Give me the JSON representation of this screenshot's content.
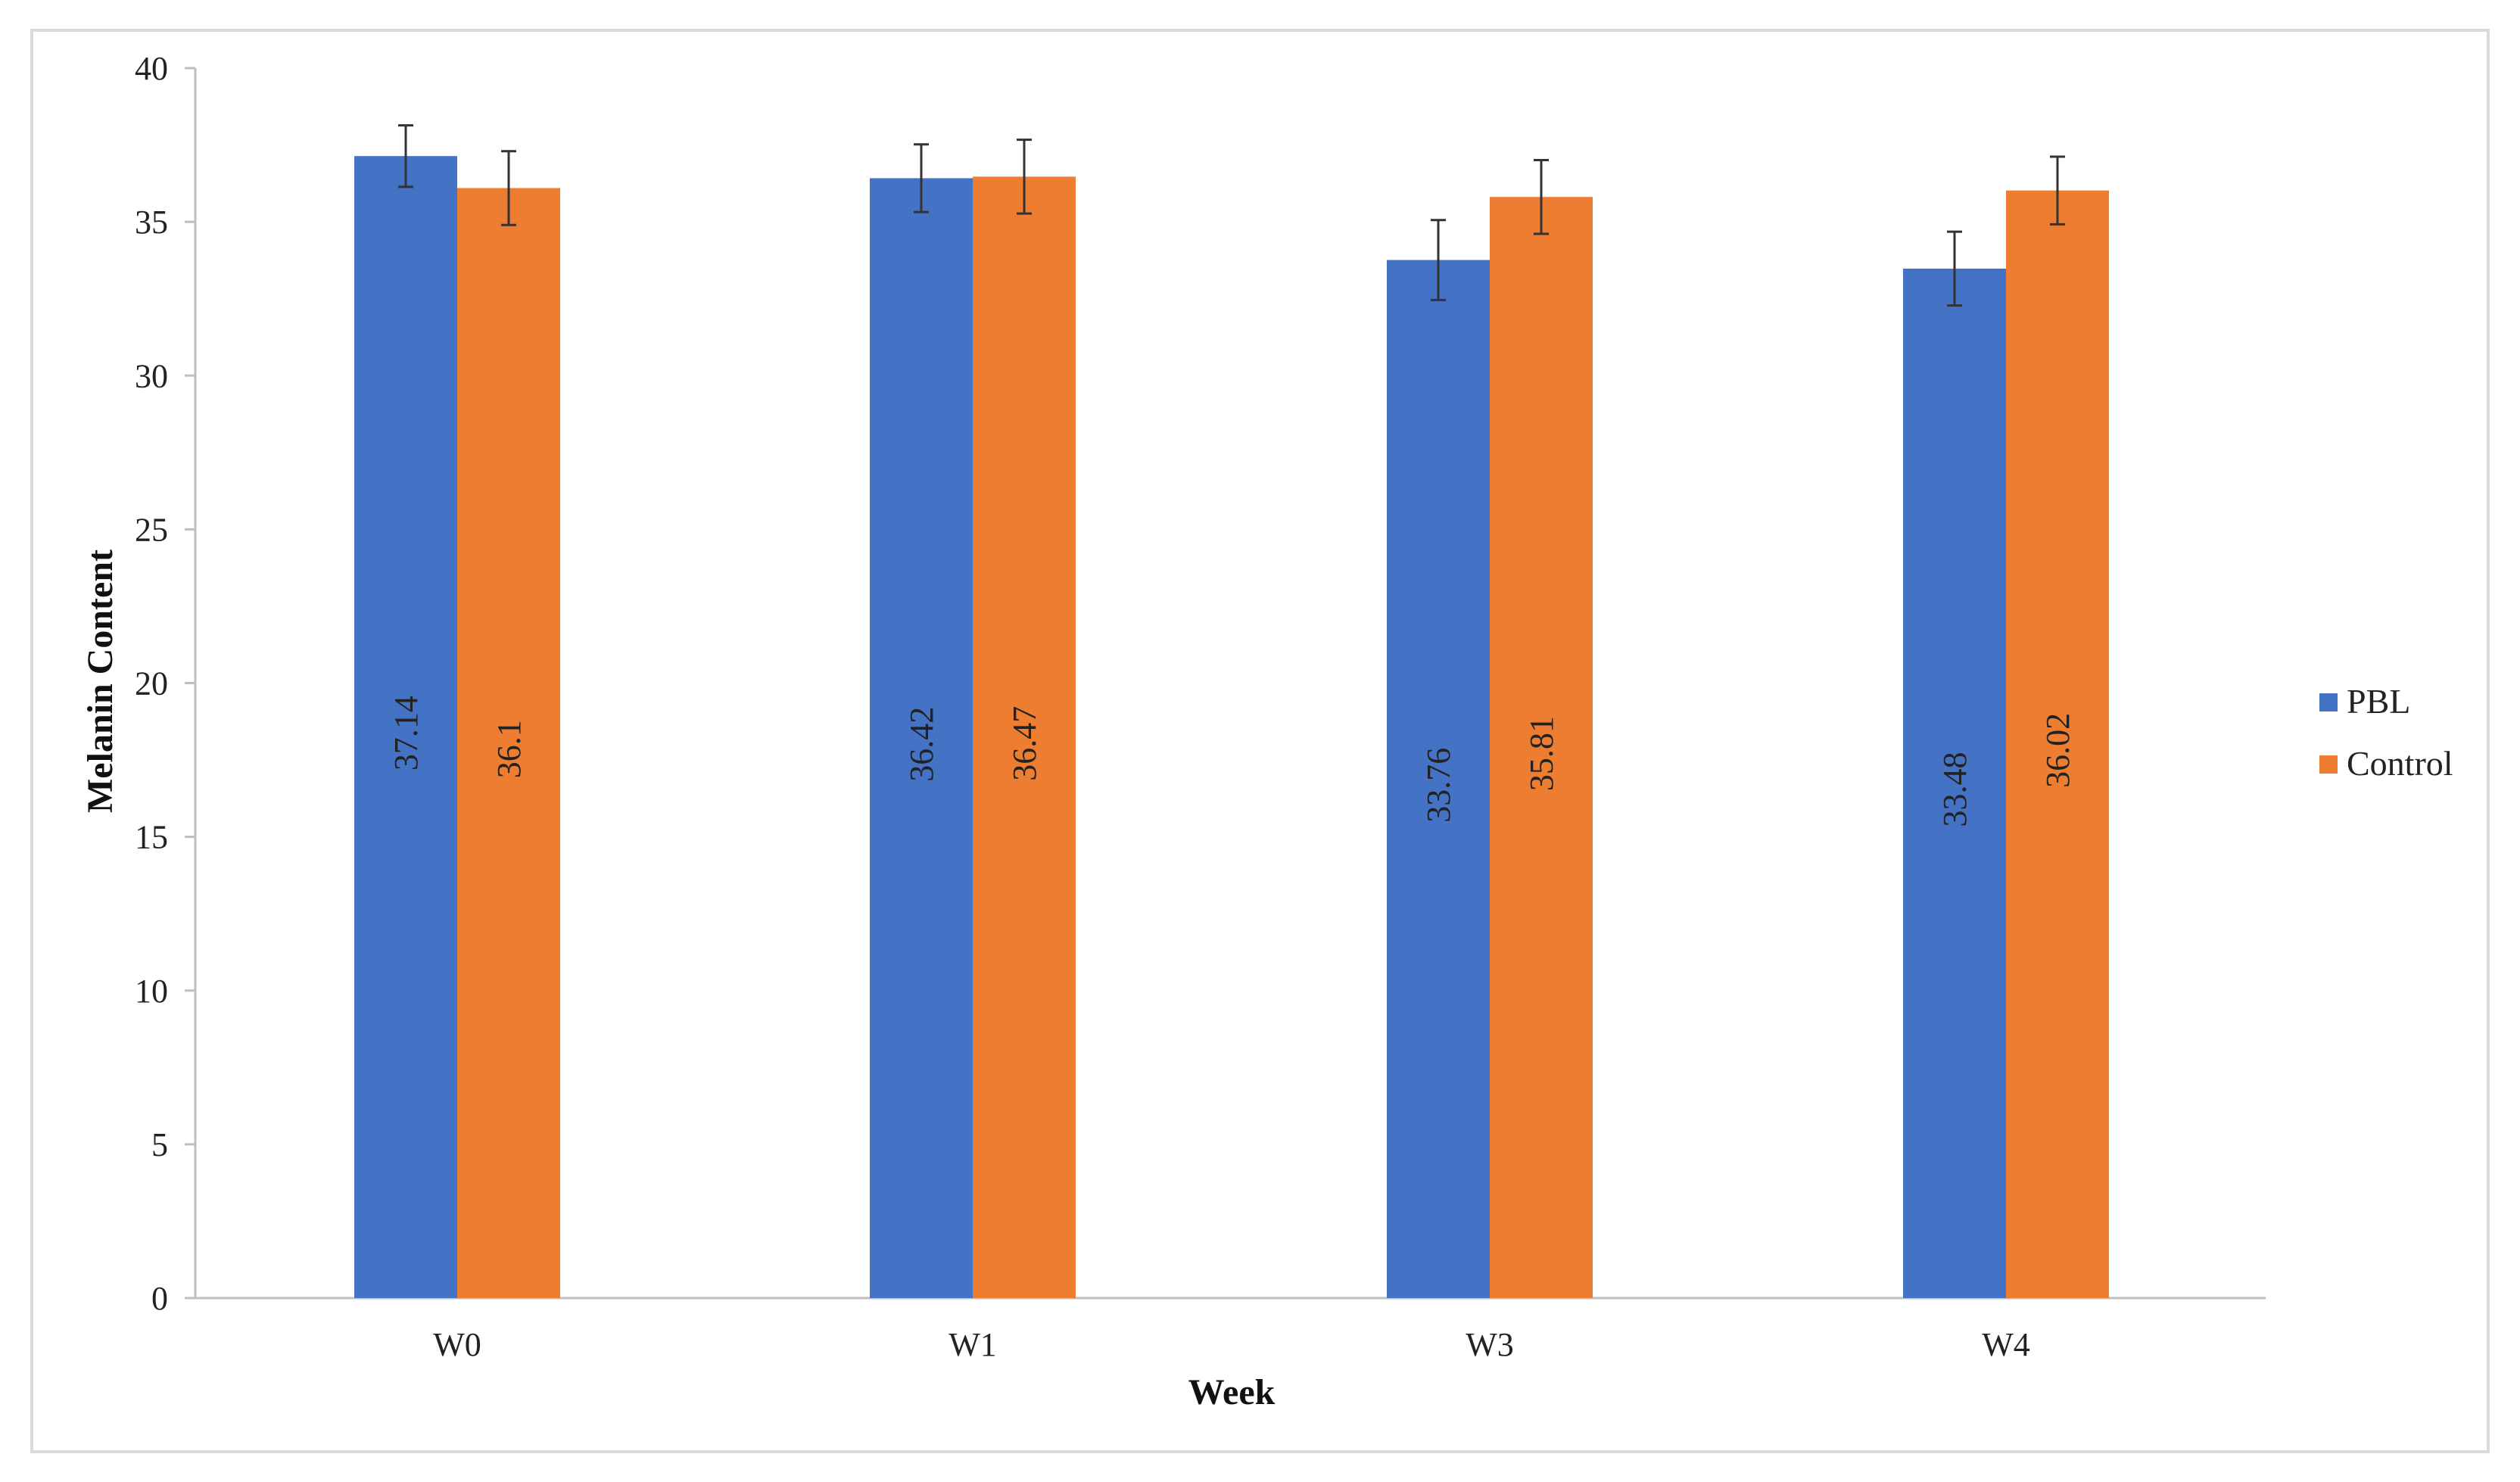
{
  "chart_data": {
    "type": "bar",
    "title": "",
    "xlabel": "Week",
    "ylabel": "Melanin Content",
    "categories": [
      "W0",
      "W1",
      "W3",
      "W4"
    ],
    "ylim": [
      0,
      40
    ],
    "yticks": [
      0,
      5,
      10,
      15,
      20,
      25,
      30,
      35,
      40
    ],
    "grid": false,
    "legend_position": "right",
    "series": [
      {
        "name": "PBL",
        "color": "#4472c4",
        "values": [
          37.14,
          36.42,
          33.76,
          33.48
        ],
        "labels": [
          "37.14",
          "36.42",
          "33.76",
          "33.48"
        ],
        "error": [
          1.0,
          1.1,
          1.3,
          1.2
        ]
      },
      {
        "name": "Control",
        "color": "#ed7d31",
        "values": [
          36.1,
          36.47,
          35.81,
          36.02
        ],
        "labels": [
          "36.1",
          "36.47",
          "35.81",
          "36.02"
        ],
        "error": [
          1.2,
          1.2,
          1.2,
          1.1
        ]
      }
    ]
  }
}
